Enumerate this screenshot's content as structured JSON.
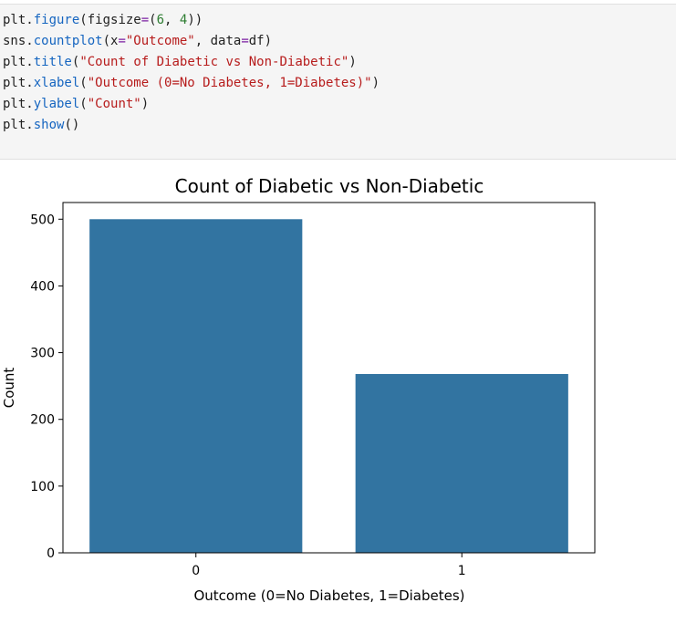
{
  "code": {
    "lines": [
      [
        {
          "t": "plt.",
          "k": "plain"
        },
        {
          "t": "figure",
          "k": "fn"
        },
        {
          "t": "(figsize",
          "k": "plain"
        },
        {
          "t": "=",
          "k": "op"
        },
        {
          "t": "(",
          "k": "plain"
        },
        {
          "t": "6",
          "k": "num"
        },
        {
          "t": ", ",
          "k": "plain"
        },
        {
          "t": "4",
          "k": "num"
        },
        {
          "t": "))",
          "k": "plain"
        }
      ],
      [
        {
          "t": "sns.",
          "k": "plain"
        },
        {
          "t": "countplot",
          "k": "fn"
        },
        {
          "t": "(x",
          "k": "plain"
        },
        {
          "t": "=",
          "k": "op"
        },
        {
          "t": "\"Outcome\"",
          "k": "str"
        },
        {
          "t": ", data",
          "k": "plain"
        },
        {
          "t": "=",
          "k": "op"
        },
        {
          "t": "df)",
          "k": "plain"
        }
      ],
      [
        {
          "t": "plt.",
          "k": "plain"
        },
        {
          "t": "title",
          "k": "fn"
        },
        {
          "t": "(",
          "k": "plain"
        },
        {
          "t": "\"Count of Diabetic vs Non-Diabetic\"",
          "k": "str"
        },
        {
          "t": ")",
          "k": "plain"
        }
      ],
      [
        {
          "t": "plt.",
          "k": "plain"
        },
        {
          "t": "xlabel",
          "k": "fn"
        },
        {
          "t": "(",
          "k": "plain"
        },
        {
          "t": "\"Outcome (0=No Diabetes, 1=Diabetes)\"",
          "k": "str"
        },
        {
          "t": ")",
          "k": "plain"
        }
      ],
      [
        {
          "t": "plt.",
          "k": "plain"
        },
        {
          "t": "ylabel",
          "k": "fn"
        },
        {
          "t": "(",
          "k": "plain"
        },
        {
          "t": "\"Count\"",
          "k": "str"
        },
        {
          "t": ")",
          "k": "plain"
        }
      ],
      [
        {
          "t": "plt.",
          "k": "plain"
        },
        {
          "t": "show",
          "k": "fn"
        },
        {
          "t": "()",
          "k": "plain"
        }
      ]
    ]
  },
  "colors": {
    "bar": "#3274a1",
    "code_function": "#1565c0",
    "code_string": "#b71c1c",
    "code_number": "#2e7d32",
    "code_operator": "#7b1fa2"
  },
  "chart_data": {
    "type": "bar",
    "title": "Count of Diabetic vs Non-Diabetic",
    "xlabel": "Outcome (0=No Diabetes, 1=Diabetes)",
    "ylabel": "Count",
    "categories": [
      "0",
      "1"
    ],
    "values": [
      500,
      268
    ],
    "yticks": [
      0,
      100,
      200,
      300,
      400,
      500
    ],
    "ylim": [
      0,
      525
    ],
    "grid": false
  }
}
